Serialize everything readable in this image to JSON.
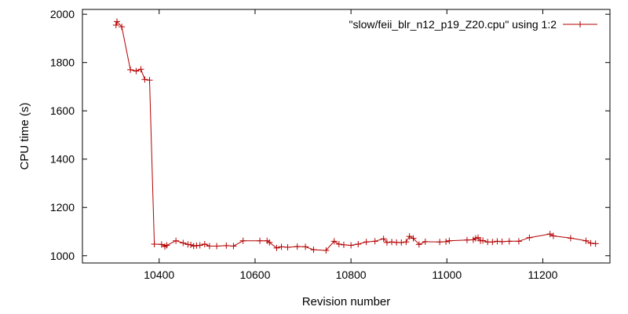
{
  "chart_data": {
    "type": "line",
    "title": "",
    "xlabel": "Revision number",
    "ylabel": "CPU time (s)",
    "xlim": [
      10240,
      11340
    ],
    "ylim": [
      970,
      2020
    ],
    "xticks": [
      10400,
      10600,
      10800,
      11000,
      11200
    ],
    "yticks": [
      1000,
      1200,
      1400,
      1600,
      1800,
      2000
    ],
    "grid": false,
    "legend": "top-right",
    "series": [
      {
        "name": "\"slow/feii_blr_n12_p19_Z20.cpu\" using 1:2",
        "color": "#b40000",
        "marker": "plus",
        "points": [
          [
            10310,
            1955
          ],
          [
            10312,
            1970
          ],
          [
            10322,
            1948
          ],
          [
            10340,
            1770
          ],
          [
            10352,
            1765
          ],
          [
            10362,
            1772
          ],
          [
            10370,
            1730
          ],
          [
            10380,
            1727
          ],
          [
            10390,
            1048
          ],
          [
            10405,
            1047
          ],
          [
            10412,
            1038
          ],
          [
            10416,
            1043
          ],
          [
            10435,
            1062
          ],
          [
            10450,
            1053
          ],
          [
            10460,
            1047
          ],
          [
            10466,
            1045
          ],
          [
            10472,
            1040
          ],
          [
            10478,
            1042
          ],
          [
            10485,
            1043
          ],
          [
            10495,
            1048
          ],
          [
            10505,
            1040
          ],
          [
            10520,
            1040
          ],
          [
            10540,
            1042
          ],
          [
            10555,
            1040
          ],
          [
            10575,
            1062
          ],
          [
            10610,
            1062
          ],
          [
            10625,
            1062
          ],
          [
            10630,
            1055
          ],
          [
            10645,
            1032
          ],
          [
            10655,
            1037
          ],
          [
            10668,
            1035
          ],
          [
            10688,
            1038
          ],
          [
            10705,
            1037
          ],
          [
            10722,
            1025
          ],
          [
            10748,
            1022
          ],
          [
            10765,
            1060
          ],
          [
            10775,
            1048
          ],
          [
            10785,
            1045
          ],
          [
            10800,
            1043
          ],
          [
            10815,
            1048
          ],
          [
            10832,
            1057
          ],
          [
            10850,
            1060
          ],
          [
            10868,
            1070
          ],
          [
            10875,
            1055
          ],
          [
            10885,
            1057
          ],
          [
            10895,
            1055
          ],
          [
            10905,
            1055
          ],
          [
            10915,
            1057
          ],
          [
            10922,
            1080
          ],
          [
            10930,
            1072
          ],
          [
            10942,
            1047
          ],
          [
            10955,
            1058
          ],
          [
            10985,
            1057
          ],
          [
            10998,
            1058
          ],
          [
            11005,
            1062
          ],
          [
            11042,
            1065
          ],
          [
            11055,
            1066
          ],
          [
            11060,
            1072
          ],
          [
            11065,
            1075
          ],
          [
            11070,
            1062
          ],
          [
            11075,
            1063
          ],
          [
            11085,
            1057
          ],
          [
            11095,
            1057
          ],
          [
            11105,
            1060
          ],
          [
            11115,
            1058
          ],
          [
            11130,
            1060
          ],
          [
            11150,
            1060
          ],
          [
            11172,
            1075
          ],
          [
            11215,
            1090
          ],
          [
            11222,
            1082
          ],
          [
            11258,
            1073
          ],
          [
            11290,
            1062
          ],
          [
            11300,
            1052
          ],
          [
            11310,
            1050
          ]
        ]
      }
    ]
  }
}
